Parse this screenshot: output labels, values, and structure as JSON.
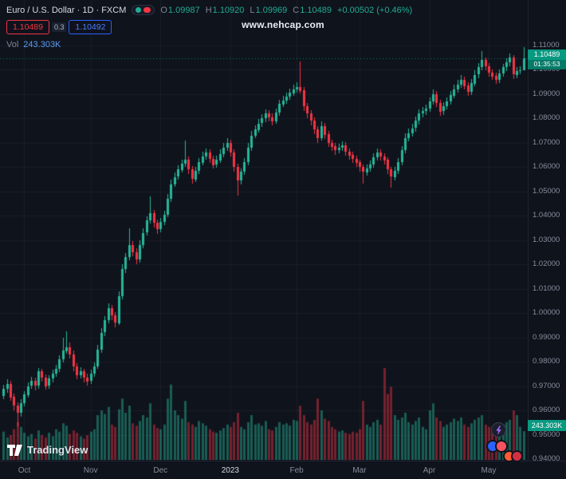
{
  "header": {
    "symbol_title": "Euro / U.S. Dollar · 1D · FXCM",
    "ohlc": {
      "o_label": "O",
      "o": "1.09987",
      "h_label": "H",
      "h": "1.10920",
      "l_label": "L",
      "l": "1.09969",
      "c_label": "C",
      "c": "1.10489",
      "change": "+0.00502 (+0.46%)"
    },
    "quote": {
      "bid": "1.10489",
      "spread": "0.3",
      "ask": "1.10492"
    },
    "volume_row": {
      "label": "Vol",
      "value": "243.303K"
    }
  },
  "watermark": "www.nehcap.com",
  "price_axis": {
    "last_price": "1.10489",
    "countdown": "01:35:53",
    "volume_label": "243.303K"
  },
  "footer": {
    "logo_text": "TradingView"
  },
  "colors": {
    "bg": "#0f131c",
    "up": "#26b899",
    "down": "#f23645",
    "vol_up": "rgba(38,184,153,0.45)",
    "vol_down": "rgba(242,54,69,0.45)",
    "grid": "rgba(134,141,155,0.09)",
    "badge": "#089981",
    "axis_text": "#868d9b"
  },
  "chart_data": {
    "type": "candlestick",
    "symbol": "Euro / U.S. Dollar",
    "interval": "1D",
    "exchange": "FXCM",
    "ylim": [
      0.94,
      1.11
    ],
    "y_ticks": [
      "1.11000",
      "1.10000",
      "1.09000",
      "1.08000",
      "1.07000",
      "1.06000",
      "1.05000",
      "1.04000",
      "1.03000",
      "1.02000",
      "1.01000",
      "1.00000",
      "0.99000",
      "0.98000",
      "0.97000",
      "0.96000",
      "0.95000",
      "0.94000"
    ],
    "x_ticks": [
      {
        "label": "Oct",
        "index": 6
      },
      {
        "label": "Nov",
        "index": 25
      },
      {
        "label": "Dec",
        "index": 45
      },
      {
        "label": "2023",
        "index": 65,
        "emphasis": true
      },
      {
        "label": "Feb",
        "index": 84
      },
      {
        "label": "Mar",
        "index": 102
      },
      {
        "label": "Apr",
        "index": 122
      },
      {
        "label": "May",
        "index": 139
      }
    ],
    "last_close": 1.10489,
    "volume_last": "243.303K",
    "candles": [
      [
        0.966,
        0.9705,
        0.9645,
        0.969
      ],
      [
        0.969,
        0.9728,
        0.9672,
        0.971
      ],
      [
        0.971,
        0.9722,
        0.9638,
        0.9655
      ],
      [
        0.9655,
        0.9668,
        0.96,
        0.962
      ],
      [
        0.962,
        0.9632,
        0.9535,
        0.959
      ],
      [
        0.959,
        0.9645,
        0.9575,
        0.963
      ],
      [
        0.963,
        0.968,
        0.9618,
        0.9665
      ],
      [
        0.9665,
        0.9716,
        0.9652,
        0.97
      ],
      [
        0.97,
        0.9738,
        0.9688,
        0.972
      ],
      [
        0.972,
        0.9734,
        0.9682,
        0.97
      ],
      [
        0.97,
        0.9775,
        0.969,
        0.976
      ],
      [
        0.976,
        0.9772,
        0.9718,
        0.9735
      ],
      [
        0.9735,
        0.9748,
        0.9684,
        0.97
      ],
      [
        0.97,
        0.9745,
        0.9688,
        0.973
      ],
      [
        0.973,
        0.9766,
        0.9716,
        0.975
      ],
      [
        0.975,
        0.9788,
        0.9738,
        0.977
      ],
      [
        0.977,
        0.9828,
        0.9758,
        0.981
      ],
      [
        0.981,
        0.99,
        0.9798,
        0.9845
      ],
      [
        0.9845,
        0.9925,
        0.9832,
        0.986
      ],
      [
        0.986,
        0.9878,
        0.9812,
        0.983
      ],
      [
        0.983,
        0.9845,
        0.9762,
        0.978
      ],
      [
        0.978,
        0.9795,
        0.9728,
        0.9745
      ],
      [
        0.9745,
        0.9778,
        0.973,
        0.976
      ],
      [
        0.976,
        0.9772,
        0.9715,
        0.9735
      ],
      [
        0.9735,
        0.975,
        0.9702,
        0.972
      ],
      [
        0.972,
        0.9768,
        0.9708,
        0.975
      ],
      [
        0.975,
        0.9796,
        0.9738,
        0.978
      ],
      [
        0.978,
        0.9868,
        0.977,
        0.985
      ],
      [
        0.985,
        0.9938,
        0.9838,
        0.992
      ],
      [
        0.992,
        0.9988,
        0.9906,
        0.997
      ],
      [
        0.997,
        1.004,
        0.9958,
        1.002
      ],
      [
        1.002,
        1.0034,
        0.9972,
        0.999
      ],
      [
        0.999,
        1.0005,
        0.994,
        0.996
      ],
      [
        0.996,
        1.009,
        0.995,
        1.007
      ],
      [
        1.007,
        1.02,
        1.0058,
        1.018
      ],
      [
        1.018,
        1.0248,
        1.0165,
        1.023
      ],
      [
        1.023,
        1.035,
        1.0218,
        1.028
      ],
      [
        1.028,
        1.0295,
        1.0232,
        1.025
      ],
      [
        1.025,
        1.0265,
        1.02,
        1.022
      ],
      [
        1.022,
        1.0298,
        1.0208,
        1.028
      ],
      [
        1.028,
        1.0348,
        1.0268,
        1.033
      ],
      [
        1.033,
        1.0398,
        1.0318,
        1.038
      ],
      [
        1.038,
        1.048,
        1.0368,
        1.041
      ],
      [
        1.041,
        1.0424,
        1.0352,
        1.037
      ],
      [
        1.037,
        1.0384,
        1.0326,
        1.0345
      ],
      [
        1.0345,
        1.0392,
        1.0332,
        1.0375
      ],
      [
        1.0375,
        1.0422,
        1.0362,
        1.0405
      ],
      [
        1.0405,
        1.0488,
        1.0394,
        1.047
      ],
      [
        1.047,
        1.0548,
        1.0458,
        1.053
      ],
      [
        1.053,
        1.0578,
        1.0518,
        1.056
      ],
      [
        1.056,
        1.0608,
        1.0548,
        1.059
      ],
      [
        1.059,
        1.0632,
        1.0578,
        1.0615
      ],
      [
        1.0615,
        1.071,
        1.0602,
        1.063
      ],
      [
        1.063,
        1.0645,
        1.0572,
        1.059
      ],
      [
        1.059,
        1.0605,
        1.0532,
        1.055
      ],
      [
        1.055,
        1.0602,
        1.0538,
        1.0585
      ],
      [
        1.0585,
        1.0638,
        1.0572,
        1.062
      ],
      [
        1.062,
        1.0662,
        1.0608,
        1.0645
      ],
      [
        1.0645,
        1.0678,
        1.0632,
        1.066
      ],
      [
        1.066,
        1.0674,
        1.0618,
        1.0635
      ],
      [
        1.0635,
        1.0648,
        1.0594,
        1.061
      ],
      [
        1.061,
        1.0646,
        1.0598,
        1.063
      ],
      [
        1.063,
        1.0672,
        1.0618,
        1.0655
      ],
      [
        1.0655,
        1.0698,
        1.0642,
        1.068
      ],
      [
        1.068,
        1.0718,
        1.0668,
        1.07
      ],
      [
        1.07,
        1.0714,
        1.0644,
        1.066
      ],
      [
        1.066,
        1.0674,
        1.0582,
        1.06
      ],
      [
        1.06,
        1.0614,
        1.0482,
        1.0545
      ],
      [
        1.0545,
        1.0596,
        1.053,
        1.058
      ],
      [
        1.058,
        1.0638,
        1.0568,
        1.062
      ],
      [
        1.062,
        1.0698,
        1.0608,
        1.068
      ],
      [
        1.068,
        1.0748,
        1.0668,
        1.073
      ],
      [
        1.073,
        1.0772,
        1.0718,
        1.0755
      ],
      [
        1.0755,
        1.0798,
        1.0742,
        1.078
      ],
      [
        1.078,
        1.0818,
        1.0766,
        1.08
      ],
      [
        1.08,
        1.0838,
        1.0786,
        1.082
      ],
      [
        1.082,
        1.0834,
        1.0788,
        1.0805
      ],
      [
        1.0805,
        1.082,
        1.0772,
        1.079
      ],
      [
        1.079,
        1.0842,
        1.0778,
        1.0825
      ],
      [
        1.0825,
        1.0878,
        1.0812,
        1.086
      ],
      [
        1.086,
        1.0892,
        1.0846,
        1.0875
      ],
      [
        1.0875,
        1.0908,
        1.0862,
        1.089
      ],
      [
        1.089,
        1.0922,
        1.0876,
        1.0905
      ],
      [
        1.0905,
        1.094,
        1.0892,
        1.092
      ],
      [
        1.092,
        1.0948,
        1.0906,
        1.093
      ],
      [
        1.093,
        1.1033,
        1.0902,
        1.0915
      ],
      [
        1.0915,
        1.0928,
        1.0832,
        1.085
      ],
      [
        1.085,
        1.0865,
        1.0802,
        1.082
      ],
      [
        1.082,
        1.0834,
        1.0772,
        1.079
      ],
      [
        1.079,
        1.0804,
        1.0736,
        1.0755
      ],
      [
        1.0755,
        1.0768,
        1.0698,
        1.072
      ],
      [
        1.072,
        1.0788,
        1.0708,
        1.077
      ],
      [
        1.077,
        1.0782,
        1.0716,
        1.0735
      ],
      [
        1.0735,
        1.0748,
        1.0682,
        1.07
      ],
      [
        1.07,
        1.0714,
        1.0668,
        1.0685
      ],
      [
        1.0685,
        1.0698,
        1.0652,
        1.067
      ],
      [
        1.067,
        1.0696,
        1.0658,
        1.068
      ],
      [
        1.068,
        1.0706,
        1.0666,
        1.069
      ],
      [
        1.069,
        1.0702,
        1.0648,
        1.0665
      ],
      [
        1.0665,
        1.0678,
        1.0632,
        1.065
      ],
      [
        1.065,
        1.0662,
        1.0618,
        1.0635
      ],
      [
        1.0635,
        1.0648,
        1.0602,
        1.062
      ],
      [
        1.062,
        1.0632,
        1.0582,
        1.06
      ],
      [
        1.06,
        1.0612,
        1.0533,
        1.058
      ],
      [
        1.058,
        1.061,
        1.0566,
        1.0595
      ],
      [
        1.0595,
        1.0626,
        1.0582,
        1.061
      ],
      [
        1.061,
        1.0656,
        1.0598,
        1.064
      ],
      [
        1.064,
        1.0676,
        1.0626,
        1.066
      ],
      [
        1.066,
        1.0672,
        1.0628,
        1.0645
      ],
      [
        1.0645,
        1.0658,
        1.0612,
        1.063
      ],
      [
        1.063,
        1.0642,
        1.0572,
        1.059
      ],
      [
        1.059,
        1.0602,
        1.0516,
        1.056
      ],
      [
        1.056,
        1.06,
        1.0546,
        1.0585
      ],
      [
        1.0585,
        1.0636,
        1.0572,
        1.062
      ],
      [
        1.062,
        1.0688,
        1.0608,
        1.067
      ],
      [
        1.067,
        1.0738,
        1.0658,
        1.072
      ],
      [
        1.072,
        1.0758,
        1.0706,
        1.074
      ],
      [
        1.074,
        1.0778,
        1.0726,
        1.076
      ],
      [
        1.076,
        1.0808,
        1.0746,
        1.079
      ],
      [
        1.079,
        1.0838,
        1.0776,
        1.082
      ],
      [
        1.082,
        1.0848,
        1.0806,
        1.083
      ],
      [
        1.083,
        1.0858,
        1.0816,
        1.084
      ],
      [
        1.084,
        1.0888,
        1.0826,
        1.087
      ],
      [
        1.087,
        1.0918,
        1.0856,
        1.09
      ],
      [
        1.09,
        1.0912,
        1.0848,
        1.0865
      ],
      [
        1.0865,
        1.0878,
        1.0812,
        1.083
      ],
      [
        1.083,
        1.0866,
        1.0816,
        1.085
      ],
      [
        1.085,
        1.0886,
        1.0836,
        1.087
      ],
      [
        1.087,
        1.0912,
        1.0856,
        1.0895
      ],
      [
        1.0895,
        1.0938,
        1.0882,
        1.092
      ],
      [
        1.092,
        1.0958,
        1.0906,
        1.094
      ],
      [
        1.094,
        1.0978,
        1.0926,
        1.096
      ],
      [
        1.096,
        1.0972,
        1.0918,
        1.0935
      ],
      [
        1.0935,
        1.0948,
        1.0892,
        1.091
      ],
      [
        1.091,
        1.0962,
        1.0896,
        1.0945
      ],
      [
        1.0945,
        1.0998,
        1.0932,
        1.098
      ],
      [
        1.098,
        1.1028,
        1.0966,
        1.101
      ],
      [
        1.101,
        1.1076,
        1.0998,
        1.104
      ],
      [
        1.104,
        1.1052,
        1.0998,
        1.1015
      ],
      [
        1.1015,
        1.1028,
        1.0972,
        1.099
      ],
      [
        1.099,
        1.1002,
        1.0958,
        1.0975
      ],
      [
        1.0975,
        1.0988,
        1.0942,
        1.096
      ],
      [
        1.096,
        1.1002,
        1.0946,
        1.0985
      ],
      [
        1.0985,
        1.1026,
        1.0972,
        1.101
      ],
      [
        1.101,
        1.1048,
        1.0996,
        1.103
      ],
      [
        1.103,
        1.1068,
        1.1016,
        1.105
      ],
      [
        1.105,
        1.1062,
        1.0962,
        1.098
      ],
      [
        1.098,
        1.1012,
        1.0966,
        1.0995
      ],
      [
        1.0995,
        1.1016,
        1.0982,
        1.0999
      ],
      [
        1.09987,
        1.1092,
        1.09969,
        1.10489
      ]
    ],
    "volumes_k": [
      240,
      190,
      210,
      260,
      320,
      280,
      230,
      200,
      220,
      180,
      250,
      210,
      190,
      230,
      200,
      260,
      240,
      310,
      290,
      220,
      250,
      230,
      200,
      180,
      210,
      240,
      260,
      380,
      420,
      390,
      450,
      300,
      280,
      430,
      520,
      400,
      460,
      310,
      290,
      330,
      380,
      360,
      480,
      300,
      270,
      260,
      300,
      520,
      640,
      420,
      380,
      350,
      500,
      320,
      300,
      280,
      330,
      310,
      290,
      260,
      240,
      230,
      250,
      270,
      300,
      280,
      320,
      400,
      280,
      260,
      320,
      380,
      300,
      310,
      290,
      330,
      260,
      250,
      280,
      320,
      300,
      310,
      290,
      340,
      330,
      460,
      380,
      320,
      300,
      340,
      520,
      420,
      350,
      330,
      280,
      260,
      240,
      250,
      230,
      220,
      240,
      230,
      260,
      500,
      300,
      280,
      320,
      340,
      300,
      780,
      560,
      620,
      380,
      340,
      360,
      400,
      320,
      300,
      330,
      360,
      280,
      260,
      420,
      480,
      360,
      330,
      280,
      300,
      320,
      350,
      330,
      360,
      300,
      280,
      310,
      340,
      360,
      380,
      300,
      280,
      260,
      240,
      280,
      300,
      320,
      340,
      420,
      380,
      280,
      243.303
    ]
  }
}
